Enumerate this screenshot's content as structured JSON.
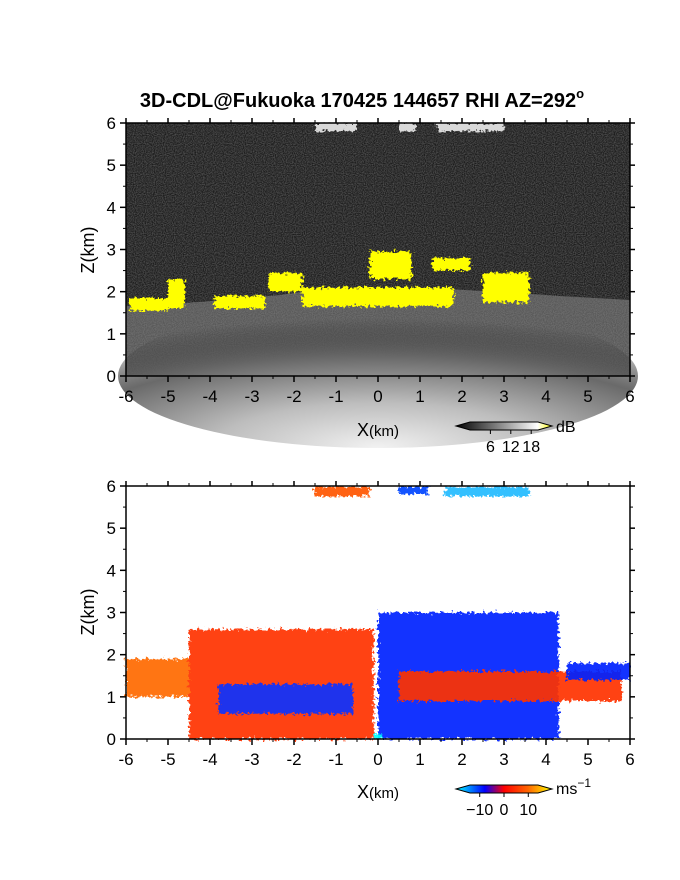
{
  "figure": {
    "title": "3D-CDL@Fukuoka 170425 144657 RHI AZ=292",
    "title_degree": "o"
  },
  "chart_data": [
    {
      "type": "heatmap",
      "panel": "reflectivity",
      "xlabel_main": "X",
      "xlabel_unit": "(km)",
      "ylabel": "Z(km)",
      "xlim": [
        -6,
        6
      ],
      "ylim": [
        0,
        6
      ],
      "x_ticks": [
        "-6",
        "-5",
        "-4",
        "-3",
        "-2",
        "-1",
        "0",
        "1",
        "2",
        "3",
        "4",
        "5",
        "6"
      ],
      "y_ticks": [
        "0",
        "1",
        "2",
        "3",
        "4",
        "5",
        "6"
      ],
      "colorbar": {
        "unit": "dB",
        "ticks": [
          "6",
          "12",
          "18"
        ],
        "tick_values": [
          6,
          12,
          18
        ],
        "range": [
          0,
          20
        ],
        "colors": [
          "#000000",
          "#ffffff",
          "#ffff00"
        ]
      },
      "background_color": "#1c1c1c",
      "features": [
        {
          "kind": "cloud",
          "color": "#ffff00",
          "x": [
            -5.9,
            -5.0
          ],
          "z": [
            1.55,
            1.85
          ]
        },
        {
          "kind": "cloud",
          "color": "#ffff00",
          "x": [
            -5.0,
            -4.6
          ],
          "z": [
            1.6,
            2.3
          ]
        },
        {
          "kind": "cloud",
          "color": "#ffff00",
          "x": [
            -3.9,
            -2.7
          ],
          "z": [
            1.6,
            1.9
          ]
        },
        {
          "kind": "cloud",
          "color": "#ffff00",
          "x": [
            -2.6,
            -1.8
          ],
          "z": [
            2.0,
            2.45
          ]
        },
        {
          "kind": "cloud",
          "color": "#ffff00",
          "x": [
            -1.8,
            1.8
          ],
          "z": [
            1.65,
            2.1
          ]
        },
        {
          "kind": "cloud",
          "color": "#ffff00",
          "x": [
            -0.2,
            0.8
          ],
          "z": [
            2.3,
            2.95
          ]
        },
        {
          "kind": "cloud",
          "color": "#ffff00",
          "x": [
            1.3,
            2.2
          ],
          "z": [
            2.5,
            2.8
          ]
        },
        {
          "kind": "cloud",
          "color": "#ffff00",
          "x": [
            2.5,
            3.6
          ],
          "z": [
            1.75,
            2.45
          ]
        },
        {
          "kind": "cloud",
          "color": "#d9d9d9",
          "x": [
            -1.5,
            -0.5
          ],
          "z": [
            5.8,
            6.0
          ]
        },
        {
          "kind": "cloud",
          "color": "#d9d9d9",
          "x": [
            0.5,
            0.9
          ],
          "z": [
            5.8,
            6.0
          ]
        },
        {
          "kind": "cloud",
          "color": "#d9d9d9",
          "x": [
            1.4,
            3.0
          ],
          "z": [
            5.8,
            6.0
          ]
        }
      ]
    },
    {
      "type": "heatmap",
      "panel": "doppler-velocity",
      "xlabel_main": "X",
      "xlabel_unit": "(km)",
      "ylabel": "Z(km)",
      "xlim": [
        -6,
        6
      ],
      "ylim": [
        0,
        6
      ],
      "x_ticks": [
        "-6",
        "-5",
        "-4",
        "-3",
        "-2",
        "-1",
        "0",
        "1",
        "2",
        "3",
        "4",
        "5",
        "6"
      ],
      "y_ticks": [
        "0",
        "1",
        "2",
        "3",
        "4",
        "5",
        "6"
      ],
      "colorbar": {
        "unit_main": "ms",
        "unit_exp": "−1",
        "ticks": [
          "−10",
          "0",
          "10"
        ],
        "tick_values": [
          -10,
          0,
          10
        ],
        "range": [
          -14,
          14
        ],
        "colors": [
          "#00ffff",
          "#0000ff",
          "#ff0000",
          "#ffff00"
        ]
      },
      "background_color": "#ffffff",
      "features": [
        {
          "kind": "echo",
          "color": "#ff6a00",
          "x": [
            -6.0,
            -4.5
          ],
          "z": [
            1.0,
            1.9
          ],
          "value": 6
        },
        {
          "kind": "echo",
          "color": "#ff3300",
          "x": [
            -4.5,
            -0.1
          ],
          "z": [
            0.0,
            2.6
          ],
          "value": 4
        },
        {
          "kind": "echo",
          "color": "#1133ff",
          "x": [
            -3.8,
            -0.6
          ],
          "z": [
            0.6,
            1.3
          ],
          "value": -4
        },
        {
          "kind": "echo",
          "color": "#0022ff",
          "x": [
            0.0,
            4.3
          ],
          "z": [
            0.0,
            3.0
          ],
          "value": -5
        },
        {
          "kind": "echo",
          "color": "#ff3300",
          "x": [
            0.5,
            5.8
          ],
          "z": [
            0.9,
            1.6
          ],
          "value": 3
        },
        {
          "kind": "echo",
          "color": "#0022ff",
          "x": [
            4.5,
            6.0
          ],
          "z": [
            1.4,
            1.8
          ],
          "value": -4
        },
        {
          "kind": "echo",
          "color": "#ff5500",
          "x": [
            -1.5,
            -0.2
          ],
          "z": [
            5.75,
            5.98
          ],
          "value": 5
        },
        {
          "kind": "echo",
          "color": "#0044ff",
          "x": [
            0.5,
            1.2
          ],
          "z": [
            5.8,
            5.98
          ],
          "value": -7
        },
        {
          "kind": "echo",
          "color": "#22bbff",
          "x": [
            1.6,
            3.6
          ],
          "z": [
            5.75,
            5.98
          ],
          "value": -10
        },
        {
          "kind": "echo",
          "color": "#00ffff",
          "x": [
            -0.1,
            0.1
          ],
          "z": [
            0.0,
            0.12
          ],
          "value": -13
        }
      ]
    }
  ]
}
